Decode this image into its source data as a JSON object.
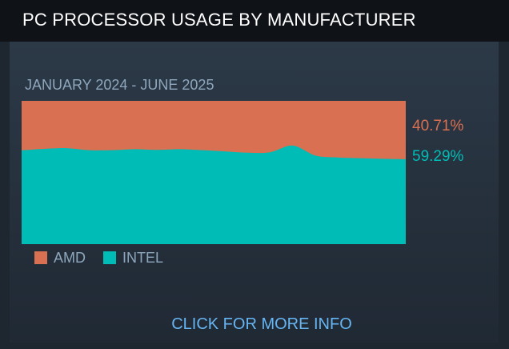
{
  "header": {
    "title": "PC PROCESSOR USAGE BY MANUFACTURER"
  },
  "subtitle": "JANUARY 2024 - JUNE 2025",
  "colors": {
    "amd": "#d97051",
    "intel": "#00bcb6"
  },
  "chart_data": {
    "type": "area",
    "stacked": true,
    "normalized": true,
    "ylim": [
      0,
      100
    ],
    "x": [
      "2024-01",
      "2024-02",
      "2024-03",
      "2024-04",
      "2024-05",
      "2024-06",
      "2024-07",
      "2024-08",
      "2024-09",
      "2024-10",
      "2024-11",
      "2024-12",
      "2025-01",
      "2025-02",
      "2025-03",
      "2025-04",
      "2025-05",
      "2025-06"
    ],
    "series": [
      {
        "name": "INTEL",
        "color": "#00bcb6",
        "values": [
          65.5,
          66.5,
          67.0,
          65.6,
          65.6,
          66.3,
          65.8,
          66.3,
          65.6,
          64.7,
          63.8,
          64.1,
          68.8,
          61.8,
          60.5,
          60.0,
          59.6,
          59.29
        ]
      },
      {
        "name": "AMD",
        "color": "#d97051",
        "values": [
          34.5,
          33.5,
          33.0,
          34.4,
          34.4,
          33.7,
          34.2,
          33.7,
          34.4,
          35.3,
          36.2,
          35.9,
          31.2,
          38.2,
          39.5,
          40.0,
          40.4,
          40.71
        ]
      }
    ],
    "end_labels": {
      "amd": "40.71%",
      "intel": "59.29%"
    }
  },
  "legend": {
    "amd": "AMD",
    "intel": "INTEL"
  },
  "more_info": "CLICK FOR MORE INFO"
}
